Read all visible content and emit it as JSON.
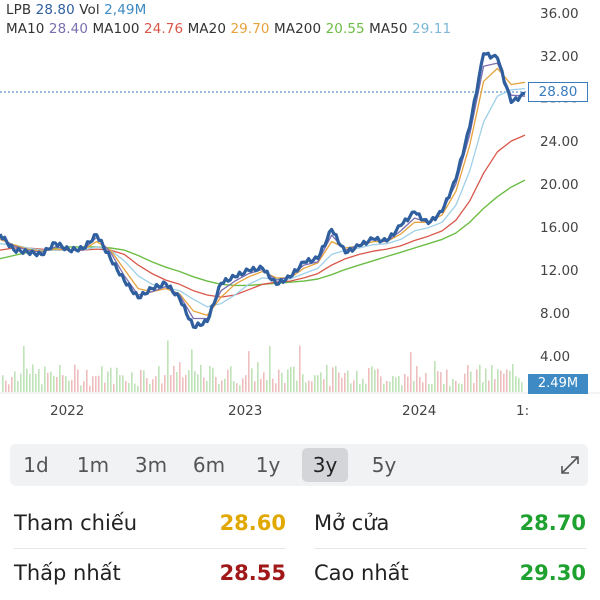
{
  "legend": {
    "symbol": "LPB",
    "price": "28.80",
    "vol_label": "Vol",
    "vol_value": "2,49M",
    "ma10_label": "MA10",
    "ma10_value": "28.40",
    "ma100_label": "MA100",
    "ma100_value": "24.76",
    "ma20_label": "MA20",
    "ma20_value": "29.70",
    "ma200_label": "MA200",
    "ma200_value": "20.55",
    "ma50_label": "MA50",
    "ma50_value": "29.11"
  },
  "colors": {
    "price": "#2f5f9e",
    "ma10": "#7b6fb0",
    "ma100": "#d9574a",
    "ma20": "#e6a23c",
    "ma200": "#6cbd45",
    "ma50": "#9fd0e8",
    "volume": "#e8a7a7",
    "volume_up": "#a9d8a0"
  },
  "y_ticks": [
    "36.00",
    "32.00",
    "28.00",
    "24.00",
    "20.00",
    "16.00",
    "12.00",
    "8.00",
    "4.00"
  ],
  "x_ticks": [
    "2022",
    "2023",
    "2024",
    "1:"
  ],
  "price_tag": "28.80",
  "volume_tag": "2.49M",
  "timeframes": [
    "1d",
    "1m",
    "3m",
    "6m",
    "1y",
    "3y",
    "5y"
  ],
  "active_timeframe": "3y",
  "stats": {
    "reference_label": "Tham chiếu",
    "reference_value": "28.60",
    "reference_color": "#e0a800",
    "open_label": "Mở cửa",
    "open_value": "28.70",
    "open_color": "#1fa12f",
    "low_label": "Thấp nhất",
    "low_value": "28.55",
    "low_color": "#a01818",
    "high_label": "Cao nhất",
    "high_value": "29.30",
    "high_color": "#1fa12f"
  },
  "chart_data": {
    "type": "line",
    "ylim": [
      4,
      36
    ],
    "x_range": [
      "2021-08",
      "2025-01"
    ],
    "series": [
      {
        "name": "LPB",
        "values": [
          15.5,
          14.2,
          14.0,
          13.6,
          14.5,
          13.8,
          14.1,
          15.6,
          13.4,
          11.2,
          9.4,
          10.2,
          10.8,
          9.6,
          7.0,
          7.4,
          10.8,
          11.3,
          12.0,
          12.4,
          11.0,
          11.6,
          12.8,
          13.0,
          15.8,
          13.8,
          14.6,
          15.2,
          14.8,
          16.1,
          17.4,
          16.5,
          17.8,
          20.8,
          25.5,
          32.2,
          31.8,
          27.8,
          28.8
        ]
      },
      {
        "name": "MA10",
        "values": [
          15.2,
          14.4,
          14.0,
          13.8,
          14.3,
          14.0,
          14.0,
          15.2,
          13.8,
          11.6,
          9.8,
          10.1,
          10.6,
          9.8,
          7.6,
          7.6,
          10.2,
          11.1,
          11.8,
          12.2,
          11.2,
          11.5,
          12.6,
          12.9,
          15.4,
          14.0,
          14.5,
          15.0,
          14.8,
          15.8,
          17.0,
          16.6,
          17.6,
          20.2,
          24.8,
          31.2,
          31.5,
          28.5,
          28.4
        ]
      },
      {
        "name": "MA20",
        "values": [
          15.0,
          14.5,
          14.1,
          13.9,
          14.1,
          14.0,
          14.0,
          14.8,
          14.0,
          12.2,
          10.4,
          10.1,
          10.4,
          9.9,
          8.3,
          7.9,
          9.6,
          10.8,
          11.5,
          12.0,
          11.4,
          11.4,
          12.3,
          12.8,
          14.8,
          14.2,
          14.4,
          14.8,
          14.8,
          15.5,
          16.6,
          16.6,
          17.3,
          19.5,
          23.8,
          29.8,
          31.0,
          29.5,
          29.7
        ]
      },
      {
        "name": "MA50",
        "values": [
          14.6,
          14.5,
          14.2,
          14.0,
          14.0,
          14.0,
          14.0,
          14.3,
          14.0,
          13.0,
          11.6,
          10.8,
          10.5,
          10.2,
          9.4,
          8.7,
          9.0,
          9.8,
          10.8,
          11.4,
          11.3,
          11.3,
          11.8,
          12.3,
          13.6,
          14.0,
          14.2,
          14.5,
          14.6,
          15.0,
          15.8,
          16.1,
          16.6,
          18.2,
          21.4,
          26.0,
          28.4,
          29.0,
          29.11
        ]
      },
      {
        "name": "MA100",
        "values": [
          14.0,
          14.2,
          14.2,
          14.1,
          14.0,
          14.0,
          14.0,
          14.1,
          14.0,
          13.6,
          12.6,
          11.8,
          11.2,
          10.8,
          10.2,
          9.8,
          9.6,
          9.8,
          10.3,
          10.8,
          11.0,
          11.1,
          11.4,
          11.8,
          12.6,
          13.2,
          13.6,
          13.9,
          14.1,
          14.4,
          14.9,
          15.3,
          15.8,
          16.8,
          18.6,
          21.2,
          23.2,
          24.2,
          24.76
        ]
      },
      {
        "name": "MA200",
        "values": [
          13.2,
          13.5,
          13.8,
          14.0,
          14.2,
          14.3,
          14.3,
          14.3,
          14.2,
          14.0,
          13.5,
          12.9,
          12.4,
          12.0,
          11.5,
          11.1,
          10.8,
          10.7,
          10.7,
          10.8,
          10.9,
          11.0,
          11.1,
          11.3,
          11.7,
          12.2,
          12.6,
          13.0,
          13.4,
          13.8,
          14.2,
          14.6,
          15.0,
          15.6,
          16.6,
          17.9,
          19.0,
          19.9,
          20.55
        ]
      }
    ],
    "volume_last": "2.49M"
  }
}
